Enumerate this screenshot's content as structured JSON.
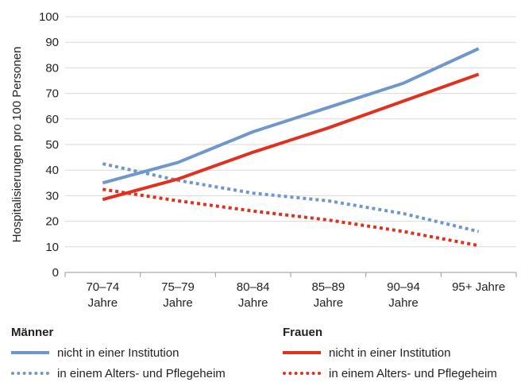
{
  "chart_data": {
    "type": "line",
    "ylabel": "Hospitalisierungen pro 100 Personen",
    "xlabel": "",
    "ylim": [
      0,
      100
    ],
    "yticks": [
      0,
      10,
      20,
      30,
      40,
      50,
      60,
      70,
      80,
      90,
      100
    ],
    "grid": true,
    "categories": [
      [
        "70–74",
        "Jahre"
      ],
      [
        "75–79",
        "Jahre"
      ],
      [
        "80–84",
        "Jahre"
      ],
      [
        "85–89",
        "Jahre"
      ],
      [
        "90–94",
        "Jahre"
      ],
      [
        "95+ Jahre"
      ]
    ],
    "groups": [
      {
        "title": "Männer",
        "color": "#6f97cc",
        "series": [
          {
            "name": "nicht in einer Institution",
            "style": "solid",
            "values": [
              35,
              43,
              55,
              64.5,
              74,
              87.5
            ]
          },
          {
            "name": "in einem Alters- und Pflegeheim",
            "style": "dotted",
            "values": [
              42.5,
              36,
              31,
              28,
              23,
              16
            ]
          }
        ]
      },
      {
        "title": "Frauen",
        "color": "#e0301e",
        "series": [
          {
            "name": "nicht in einer Institution",
            "style": "solid",
            "values": [
              28.5,
              36.5,
              47,
              56.5,
              67,
              77.5
            ]
          },
          {
            "name": "in einem Alters- und Pflegeheim",
            "style": "dotted",
            "values": [
              32.5,
              28,
              24,
              20.5,
              16,
              10.5
            ]
          }
        ]
      }
    ],
    "legend_position": "bottom"
  }
}
